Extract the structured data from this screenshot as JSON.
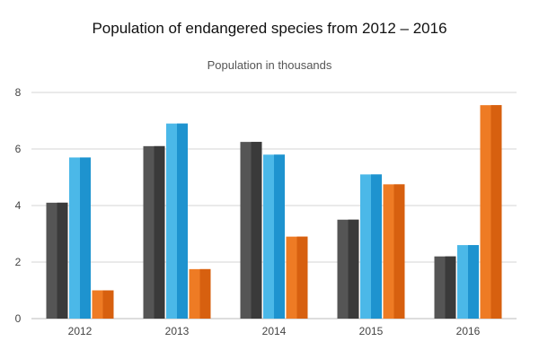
{
  "chart_data": {
    "type": "bar",
    "title": "Population of endangered species from 2012 – 2016",
    "subtitle": "Population in thousands",
    "xlabel": "",
    "ylabel": "",
    "categories": [
      "2012",
      "2013",
      "2014",
      "2015",
      "2016"
    ],
    "series": [
      {
        "values": [
          4.1,
          6.1,
          6.25,
          3.5,
          2.2
        ],
        "color": "#555555",
        "shade": "#3a3a3a"
      },
      {
        "values": [
          5.7,
          6.9,
          5.8,
          5.1,
          2.6
        ],
        "color": "#4bb8e8",
        "shade": "#1e93cf"
      },
      {
        "values": [
          1.0,
          1.75,
          2.9,
          4.75,
          7.55
        ],
        "color": "#ee7b24",
        "shade": "#d7600f"
      }
    ],
    "ylim": [
      0,
      8
    ],
    "yticks": [
      0,
      2,
      4,
      6,
      8
    ],
    "grid": true,
    "legend": "none"
  }
}
